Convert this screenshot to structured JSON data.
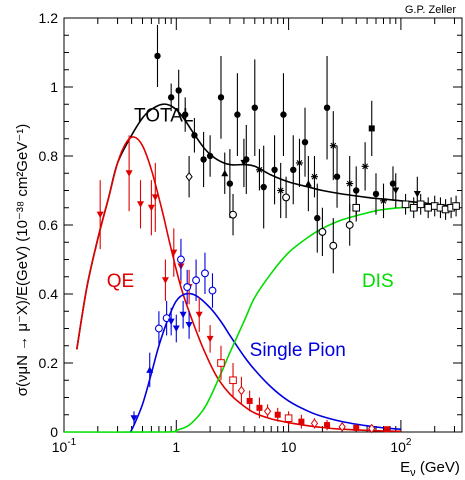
{
  "chart_data": {
    "type": "line",
    "credit": "G.P. Zeller",
    "xlabel": "Eν (GeV)",
    "xlabel_main": "E",
    "xlabel_sub": "ν",
    "xlabel_unit": " (GeV)",
    "ylabel": "σ(νμN → μ⁻X)/E(GeV)  (10⁻³⁸ cm²GeV⁻¹)",
    "xscale": "log",
    "xlim": [
      0.1,
      350
    ],
    "ylim": [
      0,
      1.2
    ],
    "x_ticks": [
      {
        "value": 0.1,
        "mantissa": "10",
        "exponent": "-1"
      },
      {
        "value": 1,
        "mantissa": "1",
        "exponent": ""
      },
      {
        "value": 10,
        "mantissa": "10",
        "exponent": ""
      },
      {
        "value": 100,
        "mantissa": "10",
        "exponent": "2"
      }
    ],
    "y_ticks": [
      "0",
      "0.2",
      "0.4",
      "0.6",
      "0.8",
      "1",
      "1.2"
    ],
    "grid": false,
    "series": [
      {
        "name": "TOTAL",
        "color": "#000000",
        "x": [
          0.13,
          0.16,
          0.2,
          0.25,
          0.3,
          0.4,
          0.5,
          0.6,
          0.75,
          0.9,
          1.1,
          1.4,
          1.8,
          2.3,
          3,
          4,
          5,
          7,
          10,
          15,
          20,
          30,
          50,
          70,
          100,
          150,
          200,
          300
        ],
        "y": [
          0.24,
          0.42,
          0.56,
          0.68,
          0.78,
          0.86,
          0.91,
          0.935,
          0.95,
          0.945,
          0.92,
          0.87,
          0.82,
          0.79,
          0.775,
          0.775,
          0.77,
          0.745,
          0.725,
          0.71,
          0.7,
          0.69,
          0.68,
          0.675,
          0.67,
          0.665,
          0.66,
          0.655
        ]
      },
      {
        "name": "QE",
        "color": "#e00000",
        "x": [
          0.13,
          0.16,
          0.2,
          0.25,
          0.3,
          0.36,
          0.42,
          0.5,
          0.6,
          0.75,
          0.9,
          1.1,
          1.4,
          1.8,
          2.3,
          3,
          4,
          5,
          7,
          10,
          15,
          20,
          30,
          50,
          70,
          100
        ],
        "y": [
          0.24,
          0.42,
          0.56,
          0.68,
          0.78,
          0.84,
          0.855,
          0.83,
          0.76,
          0.64,
          0.53,
          0.42,
          0.32,
          0.23,
          0.16,
          0.11,
          0.075,
          0.055,
          0.038,
          0.027,
          0.018,
          0.013,
          0.008,
          0.005,
          0.003,
          0.002
        ]
      },
      {
        "name": "Single Pion",
        "color": "#0000e0",
        "x": [
          0.39,
          0.42,
          0.5,
          0.6,
          0.7,
          0.85,
          1,
          1.2,
          1.5,
          2,
          2.5,
          3,
          4,
          5,
          7,
          10,
          15,
          20,
          30,
          50,
          70,
          100
        ],
        "y": [
          0,
          0.02,
          0.08,
          0.17,
          0.25,
          0.33,
          0.38,
          0.4,
          0.395,
          0.36,
          0.32,
          0.28,
          0.22,
          0.18,
          0.13,
          0.09,
          0.06,
          0.045,
          0.03,
          0.018,
          0.012,
          0.008
        ]
      },
      {
        "name": "DIS",
        "color": "#00dd00",
        "x": [
          0.1,
          0.8,
          1,
          1.3,
          1.7,
          2,
          2.5,
          3,
          4,
          5,
          7,
          10,
          15,
          20,
          30,
          50,
          70,
          100,
          150,
          200,
          300
        ],
        "y": [
          0,
          0,
          0.005,
          0.02,
          0.06,
          0.1,
          0.17,
          0.23,
          0.32,
          0.39,
          0.46,
          0.52,
          0.565,
          0.59,
          0.615,
          0.635,
          0.645,
          0.65,
          0.652,
          0.652,
          0.65
        ]
      }
    ],
    "series_labels": [
      {
        "text": "TOTAL",
        "color": "#000000",
        "x": 0.42,
        "y": 0.9
      },
      {
        "text": "QE",
        "color": "#e00000",
        "x": 0.24,
        "y": 0.42
      },
      {
        "text": "DIS",
        "color": "#00dd00",
        "x": 45,
        "y": 0.42
      },
      {
        "text": "Single Pion",
        "color": "#0000e0",
        "x": 4.5,
        "y": 0.22
      }
    ],
    "data_points": [
      {
        "group": "black",
        "marker": "circle-filled",
        "x": 0.68,
        "y": 1.09,
        "err": 0.09
      },
      {
        "group": "black",
        "marker": "circle-filled",
        "x": 0.9,
        "y": 0.97,
        "err": 0.04
      },
      {
        "group": "black",
        "marker": "circle-filled",
        "x": 1.05,
        "y": 0.99,
        "err": 0.06
      },
      {
        "group": "black",
        "marker": "circle-filled",
        "x": 1.2,
        "y": 0.92,
        "err": 0.05
      },
      {
        "group": "black",
        "marker": "circle-filled",
        "x": 1.45,
        "y": 0.86,
        "err": 0.05
      },
      {
        "group": "black",
        "marker": "circle-filled",
        "x": 1.75,
        "y": 0.79,
        "err": 0.08
      },
      {
        "group": "black",
        "marker": "circle-filled",
        "x": 2.0,
        "y": 0.8,
        "err": 0.06
      },
      {
        "group": "black",
        "marker": "circle-filled",
        "x": 2.5,
        "y": 0.97,
        "err": 0.12
      },
      {
        "group": "black",
        "marker": "circle-filled",
        "x": 3.0,
        "y": 0.72,
        "err": 0.1
      },
      {
        "group": "black",
        "marker": "circle-filled",
        "x": 3.5,
        "y": 0.92,
        "err": 0.12
      },
      {
        "group": "black",
        "marker": "circle-filled",
        "x": 4.2,
        "y": 0.79,
        "err": 0.1
      },
      {
        "group": "black",
        "marker": "circle-filled",
        "x": 5.0,
        "y": 0.94,
        "err": 0.14
      },
      {
        "group": "black",
        "marker": "circle-filled",
        "x": 6.0,
        "y": 0.71,
        "err": 0.12
      },
      {
        "group": "black",
        "marker": "circle-filled",
        "x": 7.5,
        "y": 0.76,
        "err": 0.1
      },
      {
        "group": "black",
        "marker": "circle-filled",
        "x": 9.0,
        "y": 0.92,
        "err": 0.12
      },
      {
        "group": "black",
        "marker": "circle-filled",
        "x": 11,
        "y": 0.76,
        "err": 0.1
      },
      {
        "group": "black",
        "marker": "circle-filled",
        "x": 14,
        "y": 0.84,
        "err": 0.1
      },
      {
        "group": "black",
        "marker": "circle-filled",
        "x": 18,
        "y": 0.62,
        "err": 0.1
      },
      {
        "group": "black",
        "marker": "circle-filled",
        "x": 22,
        "y": 0.94,
        "err": 0.15
      },
      {
        "group": "black",
        "marker": "circle-filled",
        "x": 27,
        "y": 0.74,
        "err": 0.09
      },
      {
        "group": "black",
        "marker": "circle-filled",
        "x": 40,
        "y": 0.7,
        "err": 0.07
      },
      {
        "group": "black",
        "marker": "circle-filled",
        "x": 60,
        "y": 0.69,
        "err": 0.06
      },
      {
        "group": "black",
        "marker": "circle-filled",
        "x": 85,
        "y": 0.72,
        "err": 0.05
      },
      {
        "group": "black",
        "marker": "square-filled",
        "x": 55,
        "y": 0.88,
        "err": 0.08
      },
      {
        "group": "black",
        "marker": "triangle-up-filled",
        "x": 2.7,
        "y": 0.75,
        "err": 0.06
      },
      {
        "group": "black",
        "marker": "triangle-up-filled",
        "x": 15,
        "y": 0.72,
        "err": 0.08
      },
      {
        "group": "black",
        "marker": "triangle-down-filled",
        "x": 4.0,
        "y": 0.78,
        "err": 0.07
      },
      {
        "group": "black",
        "marker": "triangle-down-filled",
        "x": 90,
        "y": 0.7,
        "err": 0.05
      },
      {
        "group": "black",
        "marker": "triangle-down-filled",
        "x": 140,
        "y": 0.69,
        "err": 0.05
      },
      {
        "group": "black",
        "marker": "star",
        "x": 5.5,
        "y": 0.76,
        "err": 0.06
      },
      {
        "group": "black",
        "marker": "star",
        "x": 8.5,
        "y": 0.7,
        "err": 0.08
      },
      {
        "group": "black",
        "marker": "star",
        "x": 12.5,
        "y": 0.78,
        "err": 0.07
      },
      {
        "group": "black",
        "marker": "star",
        "x": 17,
        "y": 0.74,
        "err": 0.06
      },
      {
        "group": "black",
        "marker": "star",
        "x": 25,
        "y": 0.83,
        "err": 0.1
      },
      {
        "group": "black",
        "marker": "star",
        "x": 35,
        "y": 0.72,
        "err": 0.08
      },
      {
        "group": "black",
        "marker": "star",
        "x": 48,
        "y": 0.77,
        "err": 0.07
      },
      {
        "group": "black",
        "marker": "star",
        "x": 70,
        "y": 0.67,
        "err": 0.05
      },
      {
        "group": "black",
        "marker": "diamond-open",
        "x": 1.3,
        "y": 0.74,
        "err": 0.06
      },
      {
        "group": "black",
        "marker": "circle-open",
        "x": 3.2,
        "y": 0.63,
        "err": 0.06
      },
      {
        "group": "black",
        "marker": "circle-open",
        "x": 9.5,
        "y": 0.68,
        "err": 0.06
      },
      {
        "group": "black",
        "marker": "circle-open",
        "x": 20,
        "y": 0.58,
        "err": 0.07
      },
      {
        "group": "black",
        "marker": "circle-open",
        "x": 25,
        "y": 0.54,
        "err": 0.08
      },
      {
        "group": "black",
        "marker": "circle-open",
        "x": 35,
        "y": 0.6,
        "err": 0.06
      },
      {
        "group": "black",
        "marker": "square-open",
        "x": 40,
        "y": 0.65,
        "err": 0.04
      },
      {
        "group": "black",
        "marker": "square-open",
        "x": 110,
        "y": 0.66,
        "err": 0.03
      },
      {
        "group": "black",
        "marker": "square-open",
        "x": 130,
        "y": 0.65,
        "err": 0.03
      },
      {
        "group": "black",
        "marker": "square-open",
        "x": 150,
        "y": 0.66,
        "err": 0.03
      },
      {
        "group": "black",
        "marker": "square-open",
        "x": 175,
        "y": 0.65,
        "err": 0.03
      },
      {
        "group": "black",
        "marker": "square-open",
        "x": 200,
        "y": 0.655,
        "err": 0.03
      },
      {
        "group": "black",
        "marker": "square-open",
        "x": 225,
        "y": 0.65,
        "err": 0.03
      },
      {
        "group": "black",
        "marker": "square-open",
        "x": 250,
        "y": 0.645,
        "err": 0.03
      },
      {
        "group": "black",
        "marker": "square-open",
        "x": 280,
        "y": 0.65,
        "err": 0.03
      },
      {
        "group": "black",
        "marker": "square-open",
        "x": 310,
        "y": 0.655,
        "err": 0.03
      },
      {
        "group": "red",
        "marker": "triangle-down-filled",
        "x": 0.21,
        "y": 0.63,
        "err": 0.1
      },
      {
        "group": "red",
        "marker": "triangle-down-filled",
        "x": 0.38,
        "y": 0.75,
        "err": 0.11
      },
      {
        "group": "red",
        "marker": "triangle-down-filled",
        "x": 0.48,
        "y": 0.66,
        "err": 0.07
      },
      {
        "group": "red",
        "marker": "triangle-down-filled",
        "x": 0.6,
        "y": 0.65,
        "err": 0.08
      },
      {
        "group": "red",
        "marker": "triangle-down-filled",
        "x": 0.65,
        "y": 0.68,
        "err": 0.1
      },
      {
        "group": "red",
        "marker": "triangle-down-filled",
        "x": 0.8,
        "y": 0.44,
        "err": 0.06
      },
      {
        "group": "red",
        "marker": "triangle-down-filled",
        "x": 0.95,
        "y": 0.52,
        "err": 0.07
      },
      {
        "group": "red",
        "marker": "triangle-down-filled",
        "x": 1.1,
        "y": 0.48,
        "err": 0.05
      },
      {
        "group": "red",
        "marker": "triangle-down-filled",
        "x": 1.3,
        "y": 0.42,
        "err": 0.05
      },
      {
        "group": "red",
        "marker": "triangle-down-filled",
        "x": 1.6,
        "y": 0.34,
        "err": 0.05
      },
      {
        "group": "red",
        "marker": "triangle-down-filled",
        "x": 2.0,
        "y": 0.27,
        "err": 0.04
      },
      {
        "group": "red",
        "marker": "square-open",
        "x": 2.5,
        "y": 0.2,
        "err": 0.05
      },
      {
        "group": "red",
        "marker": "square-open",
        "x": 3.2,
        "y": 0.15,
        "err": 0.05
      },
      {
        "group": "red",
        "marker": "diamond-open",
        "x": 3.8,
        "y": 0.12,
        "err": 0.04
      },
      {
        "group": "red",
        "marker": "square-filled",
        "x": 4.5,
        "y": 0.09,
        "err": 0.03
      },
      {
        "group": "red",
        "marker": "square-filled",
        "x": 5.5,
        "y": 0.07,
        "err": 0.03
      },
      {
        "group": "red",
        "marker": "diamond-open",
        "x": 6.5,
        "y": 0.06,
        "err": 0.02
      },
      {
        "group": "red",
        "marker": "square-filled",
        "x": 8,
        "y": 0.05,
        "err": 0.02
      },
      {
        "group": "red",
        "marker": "square-open",
        "x": 10,
        "y": 0.04,
        "err": 0.02
      },
      {
        "group": "red",
        "marker": "square-filled",
        "x": 13,
        "y": 0.03,
        "err": 0.02
      },
      {
        "group": "red",
        "marker": "diamond-open",
        "x": 17,
        "y": 0.025,
        "err": 0.015
      },
      {
        "group": "red",
        "marker": "square-filled",
        "x": 22,
        "y": 0.02,
        "err": 0.015
      },
      {
        "group": "red",
        "marker": "diamond-open",
        "x": 30,
        "y": 0.015,
        "err": 0.01
      },
      {
        "group": "red",
        "marker": "square-filled",
        "x": 40,
        "y": 0.012,
        "err": 0.01
      },
      {
        "group": "red",
        "marker": "diamond-open",
        "x": 55,
        "y": 0.01,
        "err": 0.01
      },
      {
        "group": "red",
        "marker": "square-filled",
        "x": 75,
        "y": 0.008,
        "err": 0.008
      },
      {
        "group": "blue",
        "marker": "triangle-down-filled",
        "x": 0.42,
        "y": 0.04,
        "err": 0.02
      },
      {
        "group": "blue",
        "marker": "triangle-up-filled",
        "x": 0.58,
        "y": 0.18,
        "err": 0.05
      },
      {
        "group": "blue",
        "marker": "circle-open",
        "x": 0.7,
        "y": 0.3,
        "err": 0.05
      },
      {
        "group": "blue",
        "marker": "circle-open",
        "x": 0.82,
        "y": 0.33,
        "err": 0.05
      },
      {
        "group": "blue",
        "marker": "triangle-down-filled",
        "x": 0.9,
        "y": 0.32,
        "err": 0.04
      },
      {
        "group": "blue",
        "marker": "triangle-down-filled",
        "x": 1.0,
        "y": 0.3,
        "err": 0.04
      },
      {
        "group": "blue",
        "marker": "circle-open",
        "x": 1.1,
        "y": 0.5,
        "err": 0.06
      },
      {
        "group": "blue",
        "marker": "triangle-down-filled",
        "x": 1.15,
        "y": 0.34,
        "err": 0.04
      },
      {
        "group": "blue",
        "marker": "circle-open",
        "x": 1.25,
        "y": 0.42,
        "err": 0.05
      },
      {
        "group": "blue",
        "marker": "triangle-down-filled",
        "x": 1.3,
        "y": 0.31,
        "err": 0.04
      },
      {
        "group": "blue",
        "marker": "circle-open",
        "x": 1.5,
        "y": 0.44,
        "err": 0.06
      },
      {
        "group": "blue",
        "marker": "circle-open",
        "x": 1.8,
        "y": 0.46,
        "err": 0.06
      },
      {
        "group": "blue",
        "marker": "circle-open",
        "x": 2.1,
        "y": 0.41,
        "err": 0.05
      }
    ]
  }
}
